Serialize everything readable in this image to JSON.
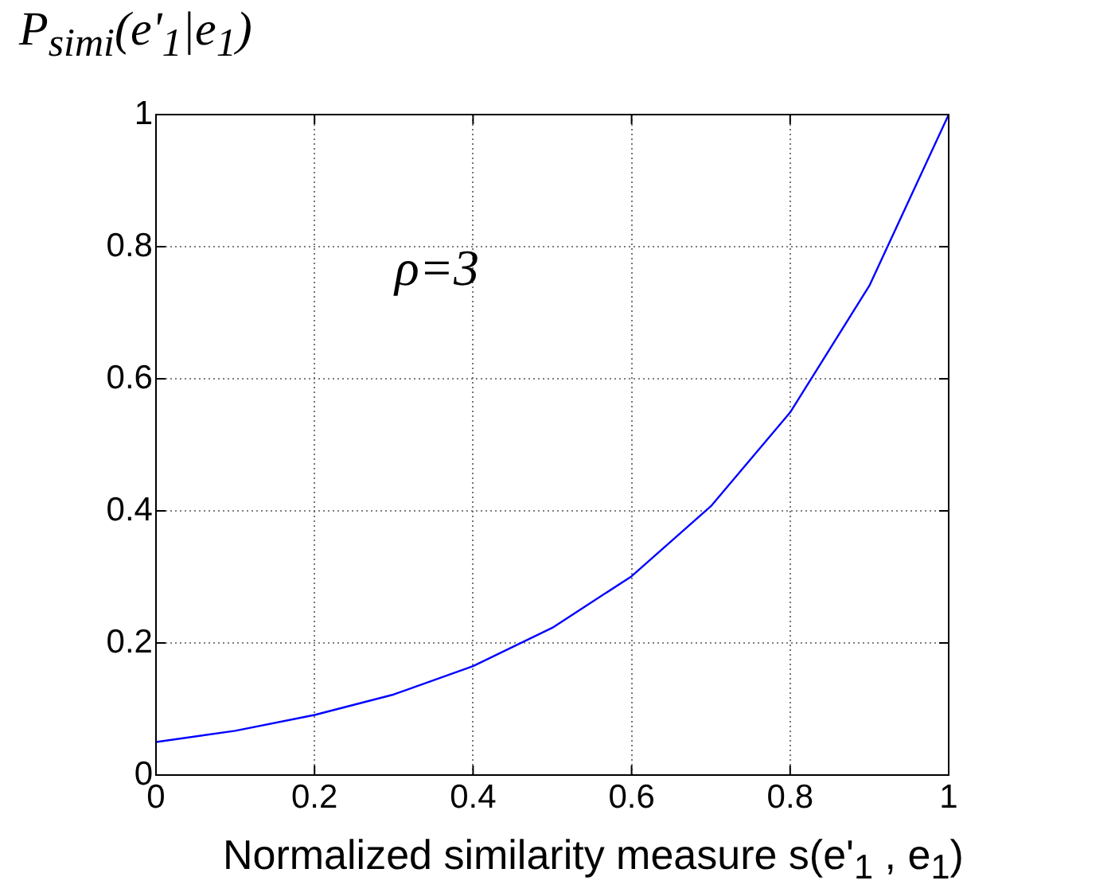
{
  "chart_data": {
    "type": "line",
    "ylabel": "P$_{simi}$(e'$_{1}$|e$_{1}$)",
    "xlabel": "Normalized similarity measure s(e'$_{1}$ , e$_{1}$)",
    "annotations": [
      "ρ=3"
    ],
    "x": [
      0,
      0.1,
      0.2,
      0.3,
      0.4,
      0.5,
      0.6,
      0.7,
      0.8,
      0.9,
      1
    ],
    "series": [
      {
        "color": "#0000ff",
        "values": [
          0.05,
          0.067,
          0.091,
          0.122,
          0.165,
          0.223,
          0.301,
          0.407,
          0.549,
          0.741,
          1
        ]
      }
    ],
    "xlim": [
      0,
      1
    ],
    "xticks": [
      0,
      0.2,
      0.4,
      0.6,
      0.8,
      1
    ],
    "ylim": [
      0,
      1
    ],
    "yticks": [
      0,
      0.2,
      0.4,
      0.6,
      0.8,
      1
    ],
    "grid": true,
    "marker": "none",
    "line_style": "solid",
    "legend": false
  }
}
